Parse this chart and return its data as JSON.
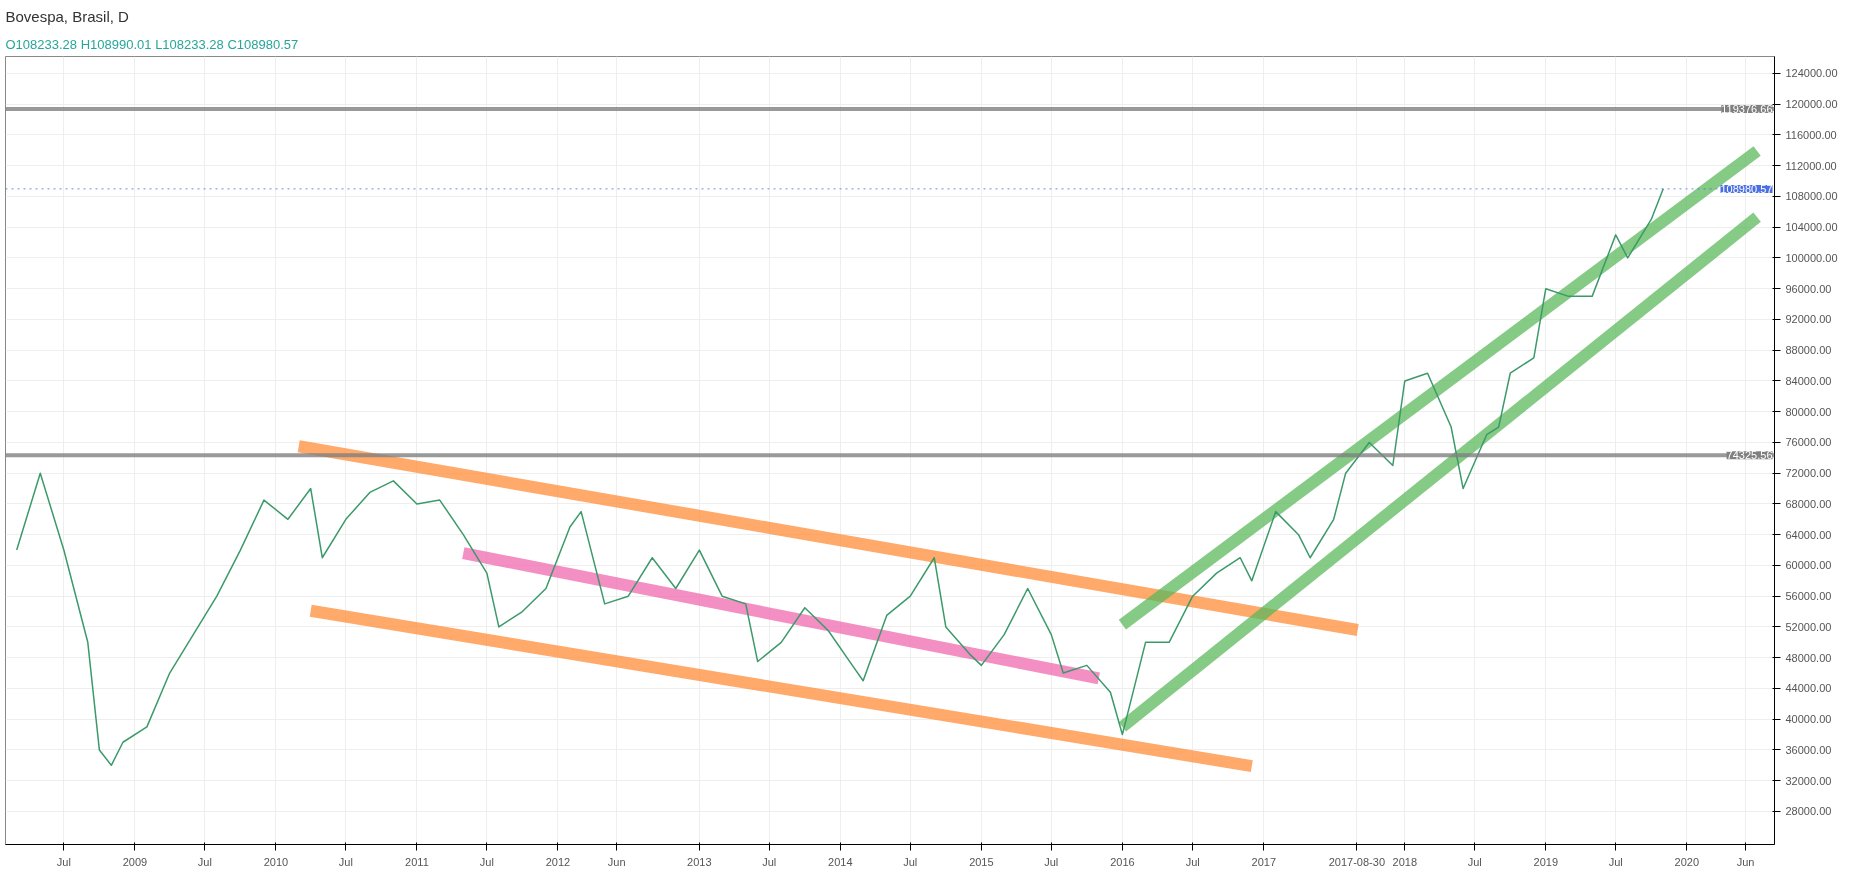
{
  "chart_data": {
    "type": "line",
    "title": "Bovespa, Brasil, D",
    "subtitle": "O108233.28 H108990.01 L108233.28 C108980.57",
    "grid": true,
    "marker": "none",
    "line_style": "solid",
    "xlim": [
      "2008-02-01",
      "2020-08-15"
    ],
    "ylim": [
      23700,
      126200
    ],
    "yticks": [
      {
        "value": 28000,
        "label": "28000.00"
      },
      {
        "value": 32000,
        "label": "32000.00"
      },
      {
        "value": 36000,
        "label": "36000.00"
      },
      {
        "value": 40000,
        "label": "40000.00"
      },
      {
        "value": 44000,
        "label": "44000.00"
      },
      {
        "value": 48000,
        "label": "48000.00"
      },
      {
        "value": 52000,
        "label": "52000.00"
      },
      {
        "value": 56000,
        "label": "56000.00"
      },
      {
        "value": 60000,
        "label": "60000.00"
      },
      {
        "value": 64000,
        "label": "64000.00"
      },
      {
        "value": 68000,
        "label": "68000.00"
      },
      {
        "value": 72000,
        "label": "72000.00"
      },
      {
        "value": 76000,
        "label": "76000.00"
      },
      {
        "value": 80000,
        "label": "80000.00"
      },
      {
        "value": 84000,
        "label": "84000.00"
      },
      {
        "value": 88000,
        "label": "88000.00"
      },
      {
        "value": 92000,
        "label": "92000.00"
      },
      {
        "value": 96000,
        "label": "96000.00"
      },
      {
        "value": 100000,
        "label": "100000.00"
      },
      {
        "value": 104000,
        "label": "104000.00"
      },
      {
        "value": 108000,
        "label": "108000.00"
      },
      {
        "value": 112000,
        "label": "112000.00"
      },
      {
        "value": 116000,
        "label": "116000.00"
      },
      {
        "value": 120000,
        "label": "120000.00"
      },
      {
        "value": 124000,
        "label": "124000.00"
      }
    ],
    "xticks": [
      {
        "value": "2008-07-01",
        "label": "Jul"
      },
      {
        "value": "2009-01-01",
        "label": "2009"
      },
      {
        "value": "2009-07-01",
        "label": "Jul"
      },
      {
        "value": "2010-01-01",
        "label": "2010"
      },
      {
        "value": "2010-07-01",
        "label": "Jul"
      },
      {
        "value": "2011-01-01",
        "label": "2011"
      },
      {
        "value": "2011-07-01",
        "label": "Jul"
      },
      {
        "value": "2012-01-01",
        "label": "2012"
      },
      {
        "value": "2012-06-01",
        "label": "Jun"
      },
      {
        "value": "2013-01-01",
        "label": "2013"
      },
      {
        "value": "2013-07-01",
        "label": "Jul"
      },
      {
        "value": "2014-01-01",
        "label": "2014"
      },
      {
        "value": "2014-07-01",
        "label": "Jul"
      },
      {
        "value": "2015-01-01",
        "label": "2015"
      },
      {
        "value": "2015-07-01",
        "label": "Jul"
      },
      {
        "value": "2016-01-01",
        "label": "2016"
      },
      {
        "value": "2016-07-01",
        "label": "Jul"
      },
      {
        "value": "2017-01-01",
        "label": "2017"
      },
      {
        "value": "2017-08-30",
        "label": "2017-08-30"
      },
      {
        "value": "2018-01-01",
        "label": "2018"
      },
      {
        "value": "2018-07-01",
        "label": "Jul"
      },
      {
        "value": "2019-01-01",
        "label": "2019"
      },
      {
        "value": "2019-07-01",
        "label": "Jul"
      },
      {
        "value": "2020-01-01",
        "label": "2020"
      },
      {
        "value": "2020-06-01",
        "label": "Jun"
      }
    ],
    "ref_lines": [
      {
        "axis": "y",
        "value": 74325.56,
        "label": "74325.56",
        "color": "#808080",
        "line_style": "solid"
      },
      {
        "axis": "y",
        "value": 119376.66,
        "label": "119376.66",
        "color": "#808080",
        "line_style": "solid"
      },
      {
        "axis": "y",
        "value": 108980.57,
        "label": "108980.57",
        "color": "#4a6fe3",
        "line_style": "dotted"
      }
    ],
    "series": [
      {
        "color": "#3c9a6a",
        "x": [
          "2008-03",
          "2008-05",
          "2008-07",
          "2008-09",
          "2008-10",
          "2008-11",
          "2008-12",
          "2009-02",
          "2009-04",
          "2009-06",
          "2009-08",
          "2009-10",
          "2009-12",
          "2010-02",
          "2010-04",
          "2010-05",
          "2010-07",
          "2010-09",
          "2010-11",
          "2011-01",
          "2011-03",
          "2011-05",
          "2011-07",
          "2011-08",
          "2011-10",
          "2011-12",
          "2012-02",
          "2012-03",
          "2012-05",
          "2012-07",
          "2012-09",
          "2012-11",
          "2013-01",
          "2013-03",
          "2013-05",
          "2013-06",
          "2013-08",
          "2013-10",
          "2013-12",
          "2014-02",
          "2014-03",
          "2014-05",
          "2014-07",
          "2014-09",
          "2014-10",
          "2014-12",
          "2015-01",
          "2015-03",
          "2015-05",
          "2015-07",
          "2015-08",
          "2015-10",
          "2015-12",
          "2016-01",
          "2016-03",
          "2016-05",
          "2016-07",
          "2016-09",
          "2016-11",
          "2016-12",
          "2017-02",
          "2017-04",
          "2017-05",
          "2017-07",
          "2017-08",
          "2017-10",
          "2017-12",
          "2018-01",
          "2018-03",
          "2018-05",
          "2018-06",
          "2018-08",
          "2018-09",
          "2018-10",
          "2018-12",
          "2019-01",
          "2019-03",
          "2019-05",
          "2019-07",
          "2019-08",
          "2019-10",
          "2019-11"
        ],
        "values": [
          62000,
          72000,
          62000,
          50000,
          36000,
          34000,
          37000,
          39000,
          46000,
          51000,
          56000,
          62000,
          68500,
          66000,
          70000,
          61000,
          66000,
          69500,
          71000,
          68000,
          68500,
          64000,
          59000,
          52000,
          54000,
          57000,
          65000,
          67000,
          55000,
          56000,
          61000,
          57000,
          62000,
          56000,
          55000,
          47500,
          50000,
          54500,
          51500,
          47000,
          45000,
          53500,
          56000,
          61000,
          52000,
          48500,
          47000,
          51000,
          57000,
          51000,
          46000,
          47000,
          43500,
          38000,
          50000,
          50000,
          56000,
          59000,
          61000,
          58000,
          67000,
          64000,
          61000,
          66000,
          72000,
          76000,
          73000,
          84000,
          85000,
          78000,
          70000,
          77000,
          78000,
          85000,
          87000,
          96000,
          95000,
          95000,
          103000,
          100000,
          105000,
          109000
        ]
      },
      {
        "type": "line",
        "color": "#ff8c3a",
        "x": [
          "2010-03",
          "2017-09"
        ],
        "values": [
          75500,
          51600
        ]
      },
      {
        "type": "line",
        "color": "#ff8c3a",
        "x": [
          "2010-04",
          "2016-12"
        ],
        "values": [
          54100,
          33900
        ]
      },
      {
        "type": "line",
        "color": "#f06ab0",
        "x": [
          "2011-05",
          "2015-11"
        ],
        "values": [
          61600,
          45300
        ]
      },
      {
        "type": "line",
        "color": "#5cb85c",
        "x": [
          "2016-01",
          "2020-07"
        ],
        "values": [
          52300,
          113900
        ]
      },
      {
        "type": "line",
        "color": "#5cb85c",
        "x": [
          "2016-01",
          "2020-07"
        ],
        "values": [
          39000,
          105300
        ]
      }
    ]
  }
}
